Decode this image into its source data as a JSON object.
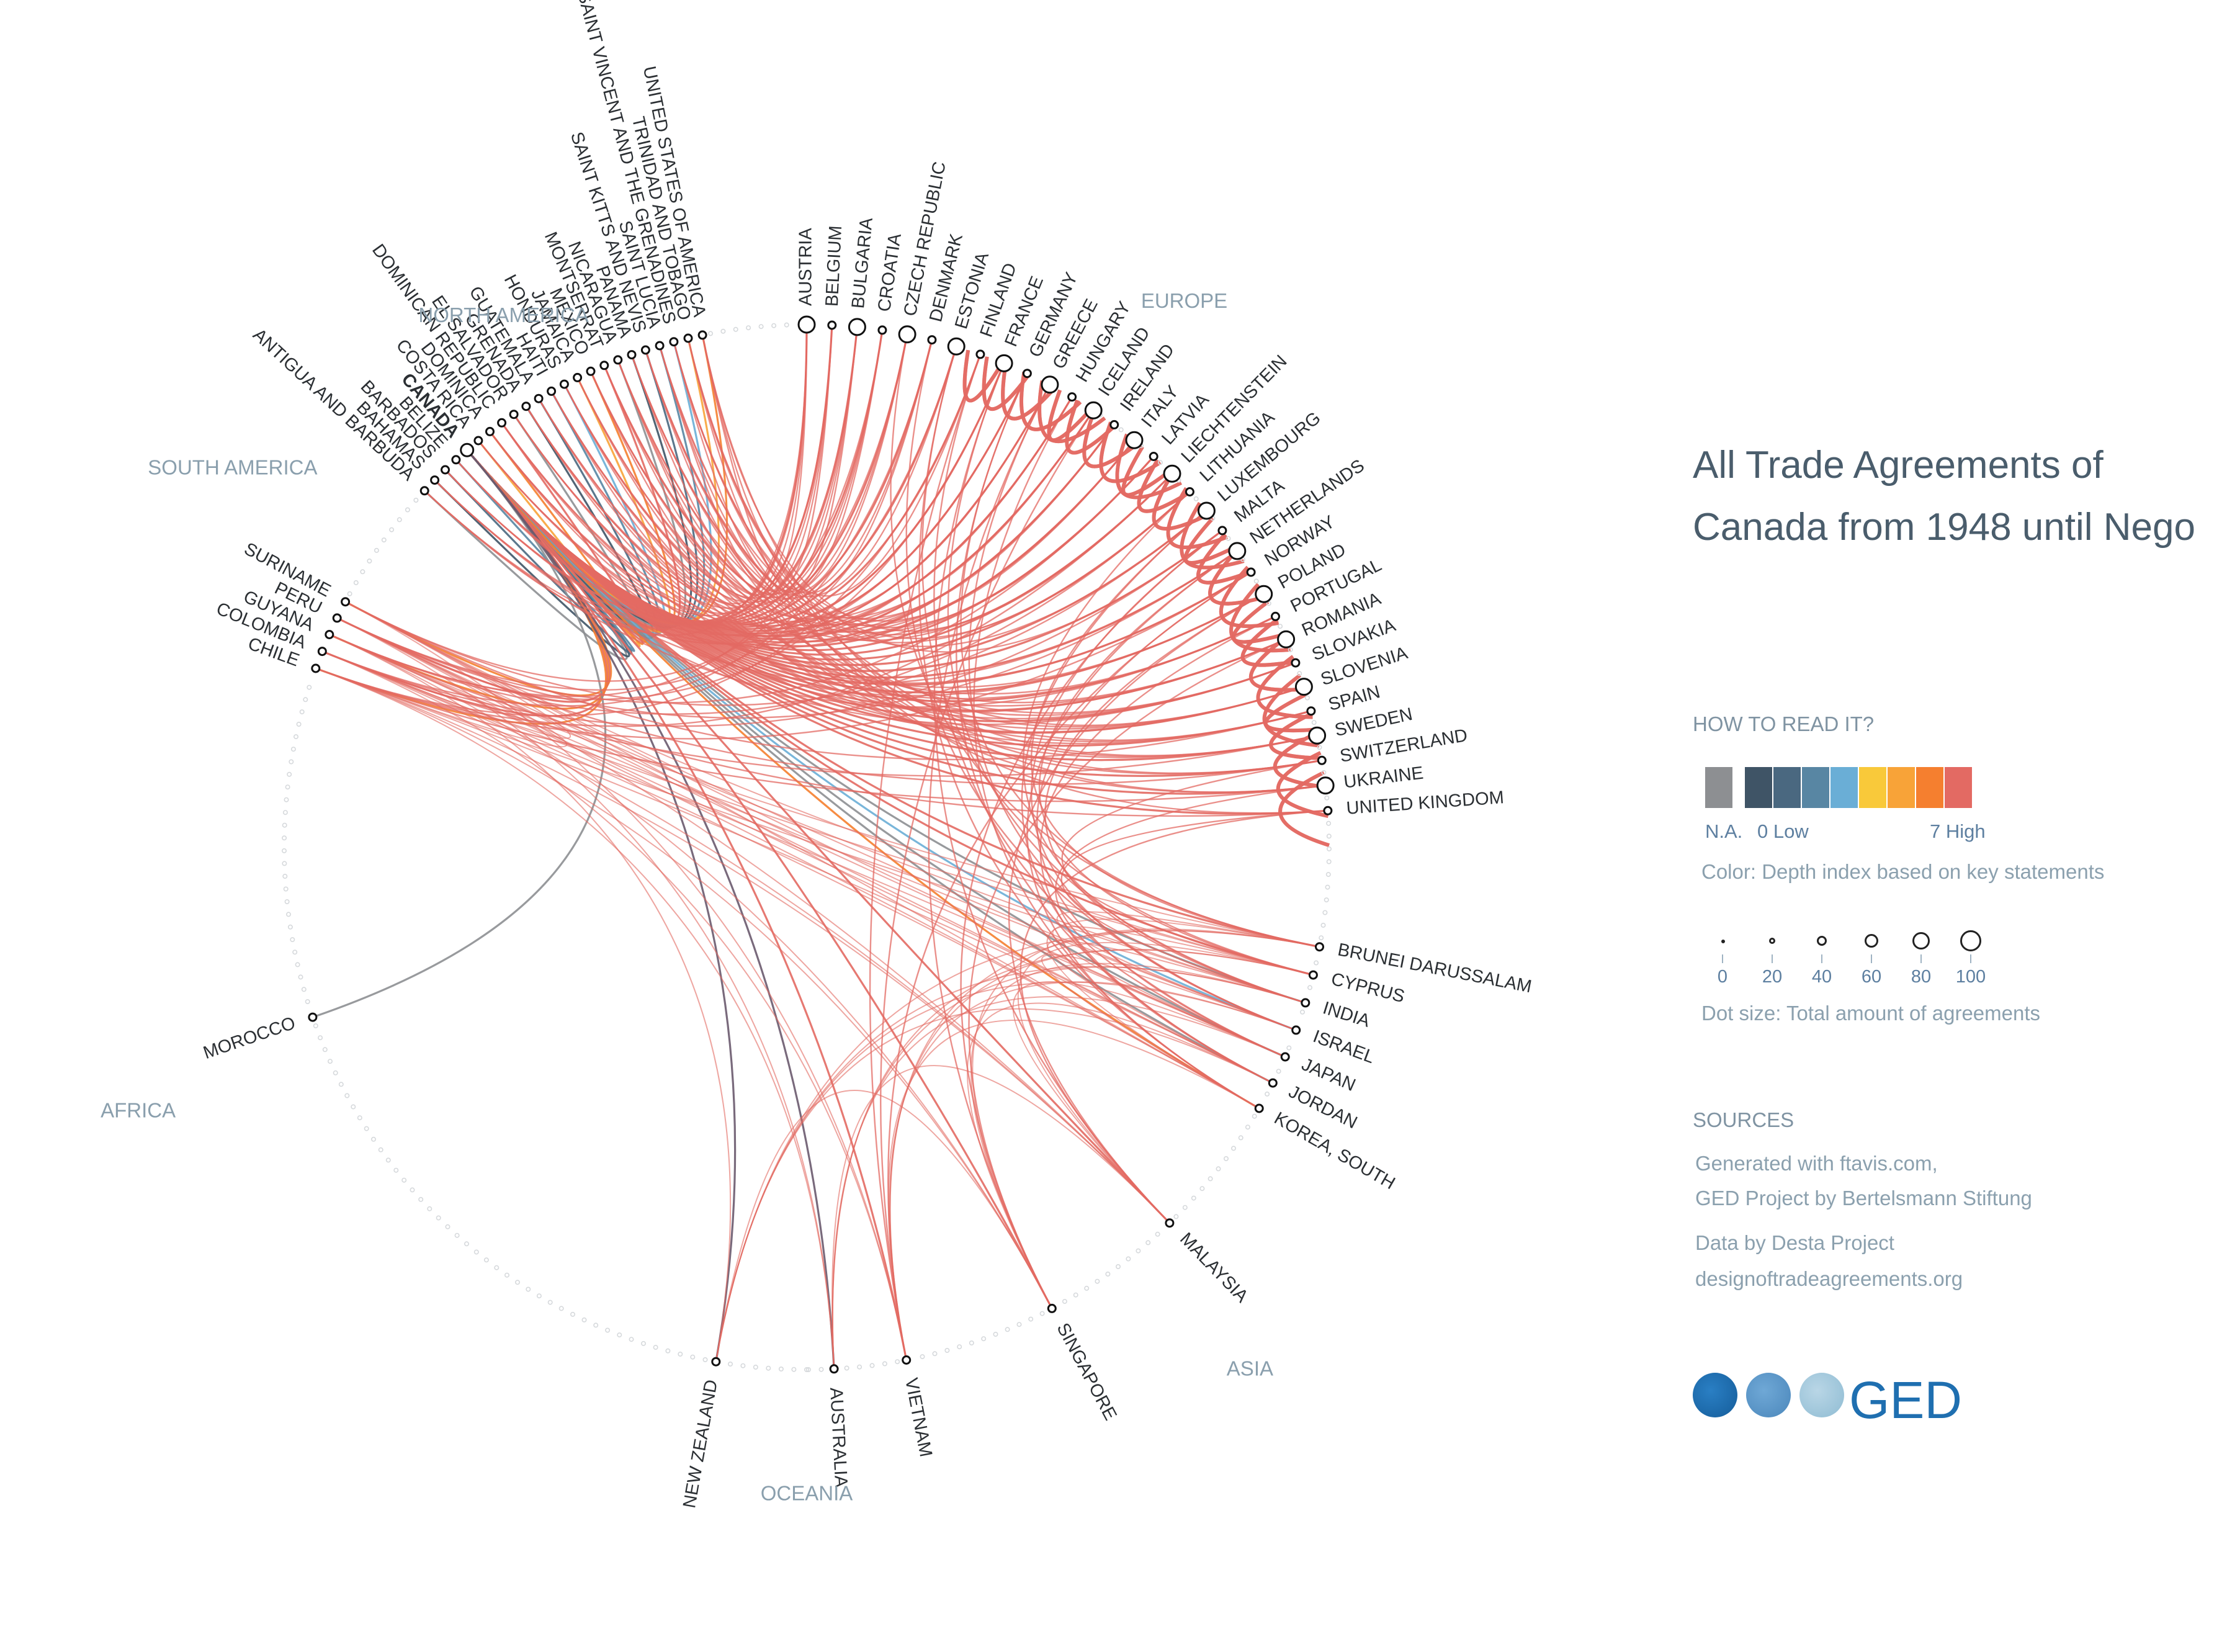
{
  "title": {
    "line1": "All Trade Agreements of",
    "line2": "Canada from 1948 until Nego"
  },
  "legend": {
    "how_to_read": "HOW TO READ IT?",
    "na_label": "N.A.",
    "low_label": "0 Low",
    "high_label": "7 High",
    "color_note": "Color: Depth index based on key statements",
    "size_ticks": [
      "0",
      "20",
      "40",
      "60",
      "80",
      "100"
    ],
    "size_note": "Dot size: Total amount of agreements",
    "colors": {
      "na": "#8d8f92",
      "scale": [
        "#3f5466",
        "#4a6880",
        "#5886a3",
        "#6aaed6",
        "#f9c93a",
        "#f8a338",
        "#f57f2f",
        "#e36a63"
      ]
    }
  },
  "sources": {
    "heading": "SOURCES",
    "line1": "Generated with ftavis.com,",
    "line2": "GED Project by Bertelsmann Stiftung",
    "line3": "Data by Desta Project",
    "line4": "designoftradeagreements.org"
  },
  "logo": {
    "text": "GED",
    "icon": "globe-icons"
  },
  "regions": [
    "NORTH AMERICA",
    "EUROPE",
    "SOUTH AMERICA",
    "AFRICA",
    "ASIA",
    "OCEANIA"
  ],
  "focus_country": "CANADA",
  "countries": {
    "north_america": [
      "ANTIGUA AND BARBUDA",
      "BAHAMAS",
      "BARBADOS",
      "BELIZE",
      "CANADA",
      "COSTA RICA",
      "DOMINICA",
      "DOMINICAN REPUBLIC",
      "EL SALVADOR",
      "GRENADA",
      "GUATEMALA",
      "HAITI",
      "HONDURAS",
      "JAMAICA",
      "MEXICO",
      "MONTSERRAT",
      "NICARAGUA",
      "PANAMA",
      "SAINT KITTS AND NEVIS",
      "SAINT LUCIA",
      "SAINT VINCENT AND THE GRENADINES",
      "TRINIDAD AND TOBAGO",
      "UNITED STATES OF AMERICA"
    ],
    "europe": [
      "AUSTRIA",
      "BELGIUM",
      "BULGARIA",
      "CROATIA",
      "CZECH REPUBLIC",
      "DENMARK",
      "ESTONIA",
      "FINLAND",
      "FRANCE",
      "GERMANY",
      "GREECE",
      "HUNGARY",
      "ICELAND",
      "IRELAND",
      "ITALY",
      "LATVIA",
      "LIECHTENSTEIN",
      "LITHUANIA",
      "LUXEMBOURG",
      "MALTA",
      "NETHERLANDS",
      "NORWAY",
      "POLAND",
      "PORTUGAL",
      "ROMANIA",
      "SLOVAKIA",
      "SLOVENIA",
      "SPAIN",
      "SWEDEN",
      "SWITZERLAND",
      "UKRAINE",
      "UNITED KINGDOM"
    ],
    "south_america": [
      "SURINAME",
      "PERU",
      "GUYANA",
      "COLOMBIA",
      "CHILE"
    ],
    "africa": [
      "MOROCCO"
    ],
    "asia": [
      "BRUNEI DARUSSALAM",
      "CYPRUS",
      "INDIA",
      "ISRAEL",
      "JAPAN",
      "JORDAN",
      "KOREA, SOUTH",
      "MALAYSIA",
      "SINGAPORE",
      "VIETNAM"
    ],
    "oceania": [
      "AUSTRALIA",
      "NEW ZEALAND"
    ]
  }
}
